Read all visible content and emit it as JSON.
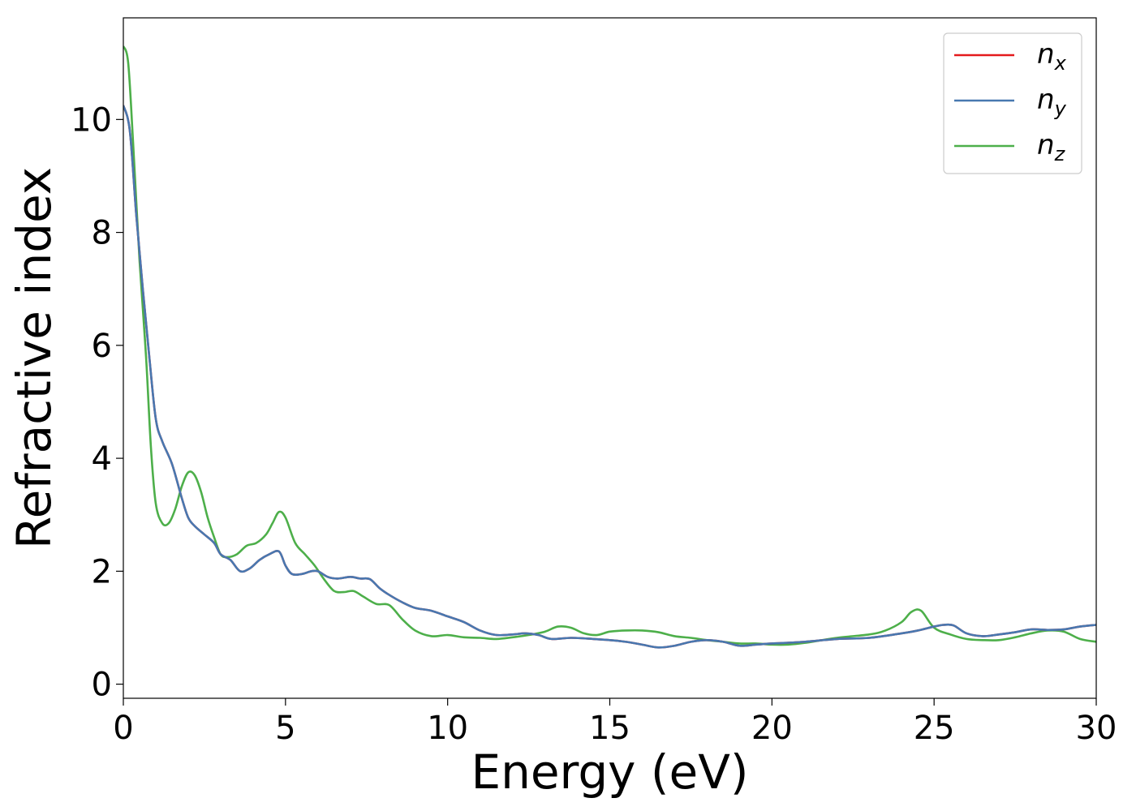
{
  "chart_data": {
    "type": "line",
    "xlabel": "Energy (eV)",
    "ylabel": "Refractive index",
    "xlim": [
      0,
      30
    ],
    "ylim": [
      -0.25,
      11.8
    ],
    "xticks": [
      "0",
      "5",
      "10",
      "15",
      "20",
      "25",
      "30"
    ],
    "yticks": [
      "0",
      "2",
      "4",
      "6",
      "8",
      "10"
    ],
    "grid": false,
    "legend_position": "top-right",
    "series": [
      {
        "name": "n",
        "subscript": "x",
        "color": "#e41a1c",
        "x": [
          0,
          0.2,
          0.4,
          0.6,
          0.8,
          1.0,
          1.2,
          1.5,
          1.8,
          2.0,
          2.2,
          2.5,
          2.8,
          3.0,
          3.3,
          3.6,
          3.9,
          4.2,
          4.5,
          4.8,
          5.0,
          5.2,
          5.5,
          5.8,
          6.0,
          6.3,
          6.6,
          7.0,
          7.3,
          7.6,
          7.9,
          8.2,
          8.6,
          9.0,
          9.5,
          10.0,
          10.5,
          11.0,
          11.5,
          12.0,
          12.4,
          12.8,
          13.2,
          13.8,
          14.5,
          15.0,
          15.5,
          16.0,
          16.5,
          17.0,
          17.5,
          18.0,
          18.5,
          19.0,
          19.5,
          20.0,
          21.0,
          22.0,
          23.0,
          24.0,
          24.5,
          25.0,
          25.3,
          25.6,
          26.0,
          26.5,
          27.0,
          27.5,
          28.0,
          28.5,
          29.0,
          29.5,
          30.0
        ],
        "y": [
          10.25,
          9.8,
          8.3,
          7.0,
          5.8,
          4.7,
          4.3,
          3.9,
          3.3,
          2.95,
          2.8,
          2.65,
          2.5,
          2.3,
          2.2,
          2.0,
          2.05,
          2.2,
          2.3,
          2.35,
          2.1,
          1.95,
          1.95,
          2.0,
          2.0,
          1.9,
          1.87,
          1.9,
          1.87,
          1.86,
          1.7,
          1.58,
          1.45,
          1.35,
          1.3,
          1.2,
          1.1,
          0.95,
          0.87,
          0.88,
          0.9,
          0.87,
          0.8,
          0.82,
          0.8,
          0.78,
          0.75,
          0.7,
          0.65,
          0.68,
          0.75,
          0.78,
          0.75,
          0.68,
          0.7,
          0.72,
          0.75,
          0.8,
          0.82,
          0.9,
          0.95,
          1.02,
          1.05,
          1.04,
          0.9,
          0.85,
          0.88,
          0.92,
          0.97,
          0.96,
          0.97,
          1.02,
          1.05
        ]
      },
      {
        "name": "n",
        "subscript": "y",
        "color": "#4878b0",
        "x": [
          0,
          0.2,
          0.4,
          0.6,
          0.8,
          1.0,
          1.2,
          1.5,
          1.8,
          2.0,
          2.2,
          2.5,
          2.8,
          3.0,
          3.3,
          3.6,
          3.9,
          4.2,
          4.5,
          4.8,
          5.0,
          5.2,
          5.5,
          5.8,
          6.0,
          6.3,
          6.6,
          7.0,
          7.3,
          7.6,
          7.9,
          8.2,
          8.6,
          9.0,
          9.5,
          10.0,
          10.5,
          11.0,
          11.5,
          12.0,
          12.4,
          12.8,
          13.2,
          13.8,
          14.5,
          15.0,
          15.5,
          16.0,
          16.5,
          17.0,
          17.5,
          18.0,
          18.5,
          19.0,
          19.5,
          20.0,
          21.0,
          22.0,
          23.0,
          24.0,
          24.5,
          25.0,
          25.3,
          25.6,
          26.0,
          26.5,
          27.0,
          27.5,
          28.0,
          28.5,
          29.0,
          29.5,
          30.0
        ],
        "y": [
          10.25,
          9.8,
          8.3,
          7.0,
          5.8,
          4.7,
          4.3,
          3.9,
          3.3,
          2.95,
          2.8,
          2.65,
          2.5,
          2.3,
          2.2,
          2.0,
          2.05,
          2.2,
          2.3,
          2.35,
          2.1,
          1.95,
          1.95,
          2.0,
          2.0,
          1.9,
          1.87,
          1.9,
          1.87,
          1.86,
          1.7,
          1.58,
          1.45,
          1.35,
          1.3,
          1.2,
          1.1,
          0.95,
          0.87,
          0.88,
          0.9,
          0.87,
          0.8,
          0.82,
          0.8,
          0.78,
          0.75,
          0.7,
          0.65,
          0.68,
          0.75,
          0.78,
          0.75,
          0.68,
          0.7,
          0.72,
          0.75,
          0.8,
          0.82,
          0.9,
          0.95,
          1.02,
          1.05,
          1.04,
          0.9,
          0.85,
          0.88,
          0.92,
          0.97,
          0.96,
          0.97,
          1.02,
          1.05
        ]
      },
      {
        "name": "n",
        "subscript": "z",
        "color": "#4daf4a",
        "x": [
          0,
          0.15,
          0.3,
          0.5,
          0.7,
          0.85,
          1.0,
          1.2,
          1.4,
          1.6,
          1.8,
          2.0,
          2.2,
          2.4,
          2.6,
          2.8,
          3.0,
          3.2,
          3.5,
          3.8,
          4.1,
          4.4,
          4.6,
          4.8,
          5.0,
          5.3,
          5.6,
          5.9,
          6.2,
          6.5,
          6.8,
          7.1,
          7.4,
          7.8,
          8.2,
          8.6,
          9.0,
          9.5,
          10.0,
          10.5,
          11.0,
          11.5,
          12.0,
          12.5,
          13.0,
          13.4,
          13.8,
          14.2,
          14.6,
          15.0,
          15.5,
          16.0,
          16.5,
          17.0,
          17.5,
          18.0,
          18.5,
          19.0,
          19.5,
          20.0,
          20.5,
          21.0,
          22.0,
          23.0,
          23.5,
          24.0,
          24.3,
          24.6,
          25.0,
          25.5,
          26.0,
          26.5,
          27.0,
          27.5,
          28.0,
          28.5,
          29.0,
          29.5,
          30.0
        ],
        "y": [
          11.3,
          11.0,
          9.6,
          7.5,
          5.8,
          4.2,
          3.2,
          2.85,
          2.85,
          3.1,
          3.5,
          3.75,
          3.7,
          3.4,
          2.95,
          2.6,
          2.3,
          2.25,
          2.3,
          2.45,
          2.5,
          2.65,
          2.85,
          3.05,
          2.95,
          2.5,
          2.3,
          2.1,
          1.85,
          1.65,
          1.63,
          1.65,
          1.55,
          1.42,
          1.4,
          1.15,
          0.95,
          0.85,
          0.87,
          0.83,
          0.82,
          0.8,
          0.83,
          0.87,
          0.93,
          1.02,
          1.0,
          0.9,
          0.87,
          0.93,
          0.95,
          0.95,
          0.92,
          0.85,
          0.82,
          0.78,
          0.75,
          0.72,
          0.72,
          0.7,
          0.7,
          0.73,
          0.82,
          0.88,
          0.95,
          1.1,
          1.28,
          1.3,
          1.0,
          0.88,
          0.8,
          0.78,
          0.78,
          0.83,
          0.9,
          0.95,
          0.93,
          0.8,
          0.75
        ]
      }
    ]
  }
}
